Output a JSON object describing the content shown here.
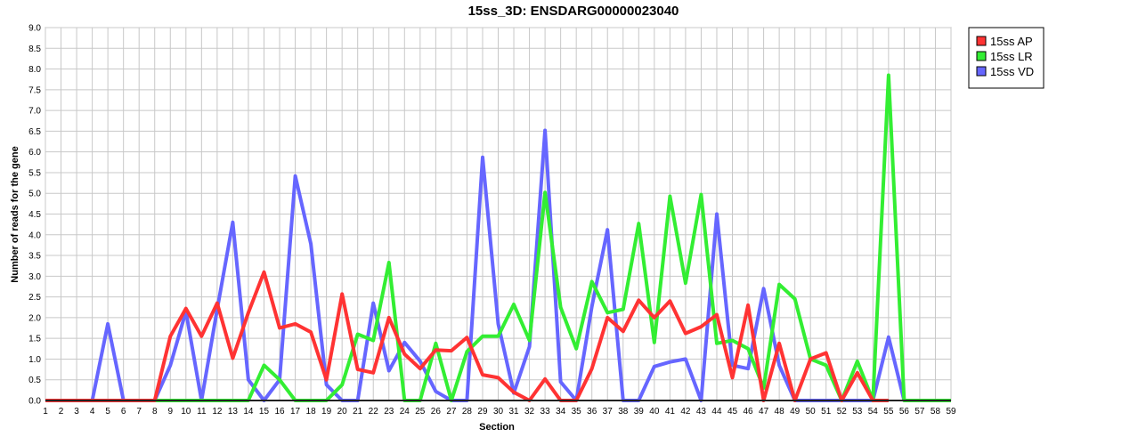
{
  "chart_data": {
    "type": "line",
    "title": "15ss_3D: ENSDARG00000023040",
    "xlabel": "Section",
    "ylabel": "Number of reads for the gene",
    "xlim": [
      1,
      59
    ],
    "ylim": [
      0,
      9
    ],
    "ytick_step": 0.5,
    "grid": true,
    "legend_position": "top-right",
    "categories": [
      1,
      2,
      3,
      4,
      5,
      6,
      7,
      8,
      9,
      10,
      11,
      12,
      13,
      14,
      15,
      16,
      17,
      18,
      19,
      20,
      21,
      22,
      23,
      24,
      25,
      26,
      27,
      28,
      29,
      30,
      31,
      32,
      33,
      34,
      35,
      36,
      37,
      38,
      39,
      40,
      41,
      42,
      43,
      44,
      45,
      46,
      47,
      48,
      49,
      50,
      51,
      52,
      53,
      54,
      55,
      56,
      57,
      58,
      59
    ],
    "series": [
      {
        "name": "15ss AP",
        "color": "#ff3333",
        "x": [
          1,
          2,
          3,
          4,
          5,
          6,
          7,
          8,
          9,
          10,
          11,
          12,
          13,
          14,
          15,
          16,
          17,
          18,
          19,
          20,
          21,
          22,
          23,
          24,
          25,
          26,
          27,
          28,
          29,
          30,
          31,
          32,
          33,
          34,
          35,
          36,
          37,
          38,
          39,
          40,
          41,
          42,
          43,
          44,
          45,
          46,
          47,
          48,
          49,
          50,
          51,
          52,
          53,
          54,
          55
        ],
        "values": [
          0,
          0,
          0,
          0,
          0,
          0,
          0,
          0,
          1.55,
          2.22,
          1.55,
          2.35,
          1.02,
          2.12,
          3.1,
          1.75,
          1.85,
          1.65,
          0.5,
          2.57,
          0.75,
          0.67,
          2.0,
          1.12,
          0.77,
          1.22,
          1.2,
          1.52,
          0.62,
          0.55,
          0.2,
          0.0,
          0.52,
          0.0,
          0.0,
          0.77,
          2.0,
          1.67,
          2.42,
          2.0,
          2.4,
          1.62,
          1.78,
          2.07,
          0.55,
          2.3,
          0.0,
          1.38,
          0.0,
          1.0,
          1.15,
          0.0,
          0.67,
          0.0,
          0.0
        ]
      },
      {
        "name": "15ss LR",
        "color": "#33ee33",
        "x": [
          1,
          2,
          3,
          4,
          5,
          6,
          7,
          8,
          9,
          10,
          11,
          12,
          13,
          14,
          15,
          16,
          17,
          18,
          19,
          20,
          21,
          22,
          23,
          24,
          25,
          26,
          27,
          28,
          29,
          30,
          31,
          32,
          33,
          34,
          35,
          36,
          37,
          38,
          39,
          40,
          41,
          42,
          43,
          44,
          45,
          46,
          47,
          48,
          49,
          50,
          51,
          52,
          53,
          54,
          55,
          56,
          57,
          58,
          59
        ],
        "values": [
          0,
          0,
          0,
          0,
          0,
          0,
          0,
          0,
          0,
          0,
          0,
          0,
          0,
          0,
          0.85,
          0.5,
          0,
          0,
          0,
          0.38,
          1.6,
          1.45,
          3.33,
          0,
          0,
          1.38,
          0,
          1.18,
          1.55,
          1.55,
          2.32,
          1.45,
          5.02,
          2.25,
          1.25,
          2.87,
          2.12,
          2.2,
          4.27,
          1.4,
          4.93,
          2.83,
          4.97,
          1.38,
          1.45,
          1.25,
          0.3,
          2.8,
          2.45,
          1.0,
          0.85,
          0,
          0.95,
          0,
          7.85,
          0,
          0,
          0,
          0
        ]
      },
      {
        "name": "15ss VD",
        "color": "#6666ff",
        "x": [
          1,
          2,
          3,
          4,
          5,
          6,
          7,
          8,
          9,
          10,
          11,
          12,
          13,
          14,
          15,
          16,
          17,
          18,
          19,
          20,
          21,
          22,
          23,
          24,
          25,
          26,
          27,
          28,
          29,
          30,
          31,
          32,
          33,
          34,
          35,
          36,
          37,
          38,
          39,
          40,
          41,
          42,
          43,
          44,
          45,
          46,
          47,
          48,
          49,
          50,
          51,
          52,
          53,
          54,
          55,
          56
        ],
        "values": [
          0,
          0,
          0,
          0,
          1.85,
          0,
          0,
          0,
          0.85,
          2.15,
          0,
          2.2,
          4.3,
          0.5,
          0,
          0.5,
          5.42,
          3.78,
          0.38,
          0,
          0,
          2.35,
          0.72,
          1.4,
          0.95,
          0.22,
          0,
          0,
          5.87,
          1.85,
          0.18,
          1.3,
          6.52,
          0.45,
          0,
          2.27,
          4.12,
          0,
          0,
          0.82,
          0.93,
          1.0,
          0,
          4.5,
          0.85,
          0.77,
          2.7,
          0.85,
          0,
          0,
          0,
          0,
          0,
          0,
          1.53,
          0
        ]
      }
    ]
  }
}
